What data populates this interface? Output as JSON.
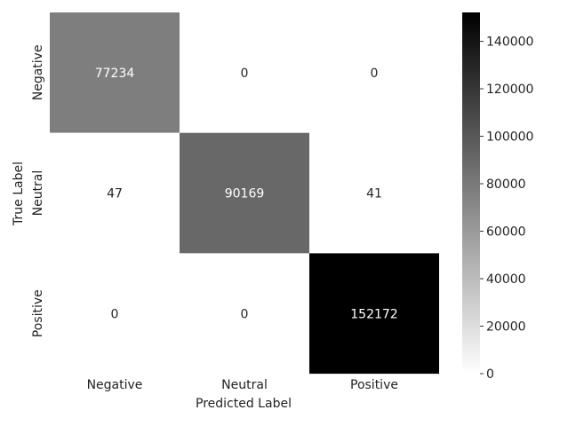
{
  "chart_data": {
    "type": "heatmap",
    "title": "",
    "xlabel": "Predicted Label",
    "ylabel": "True Label",
    "x_categories": [
      "Negative",
      "Neutral",
      "Positive"
    ],
    "y_categories": [
      "Negative",
      "Neutral",
      "Positive"
    ],
    "values": [
      [
        77234,
        0,
        0
      ],
      [
        47,
        90169,
        41
      ],
      [
        0,
        0,
        152172
      ]
    ],
    "colorbar": {
      "min": 0,
      "max": 152172,
      "ticks": [
        0,
        20000,
        40000,
        60000,
        80000,
        100000,
        120000,
        140000
      ],
      "colormap": "Greys",
      "low_color": "#ffffff",
      "high_color": "#000000"
    }
  }
}
